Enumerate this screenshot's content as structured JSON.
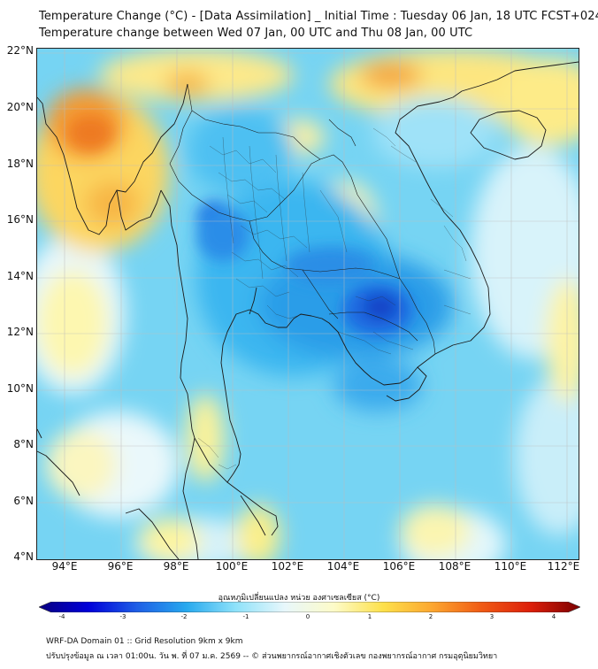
{
  "title_line1": "Temperature Change (°C) - [Data Assimilation] _ Initial Time : Tuesday 06 Jan, 18 UTC FCST+024",
  "title_line2": "Temperature change between Wed 07 Jan, 00 UTC and Thu 08 Jan, 00 UTC",
  "lat_labels": [
    "22°N",
    "20°N",
    "18°N",
    "16°N",
    "14°N",
    "12°N",
    "10°N",
    "8°N",
    "6°N",
    "4°N"
  ],
  "lon_labels": [
    "94°E",
    "96°E",
    "98°E",
    "100°E",
    "102°E",
    "104°E",
    "106°E",
    "108°E",
    "110°E",
    "112°E"
  ],
  "colorbar": {
    "title": "อุณหภูมิเปลี่ยนแปลง หน่วย องศาเซลเซียส (°C)",
    "ticks": [
      "-4",
      "-3",
      "-2",
      "-1",
      "0",
      "1",
      "2",
      "3",
      "4"
    ],
    "min": -4,
    "max": 4,
    "colors": [
      "#0a0080",
      "#0000d9",
      "#1e5fe6",
      "#27a9ee",
      "#8fe2fa",
      "#e8f7fb",
      "#fdfbc8",
      "#fde04a",
      "#fca630",
      "#f05a14",
      "#dc1e0a",
      "#7a0000"
    ]
  },
  "footer_line1": "WRF-DA Domain 01 :: Grid Resolution 9km x 9km",
  "footer_line2": "ปรับปรุงข้อมูล ณ เวลา 01:00น. วัน พ. ที่ 07 ม.ค. 2569 -- © ส่วนพยากรณ์อากาศเชิงตัวเลข กองพยากรณ์อากาศ กรมอุตุนิยมวิทยา",
  "map_extent": {
    "lon": [
      93,
      112.4
    ],
    "lat": [
      4,
      22.2
    ]
  }
}
